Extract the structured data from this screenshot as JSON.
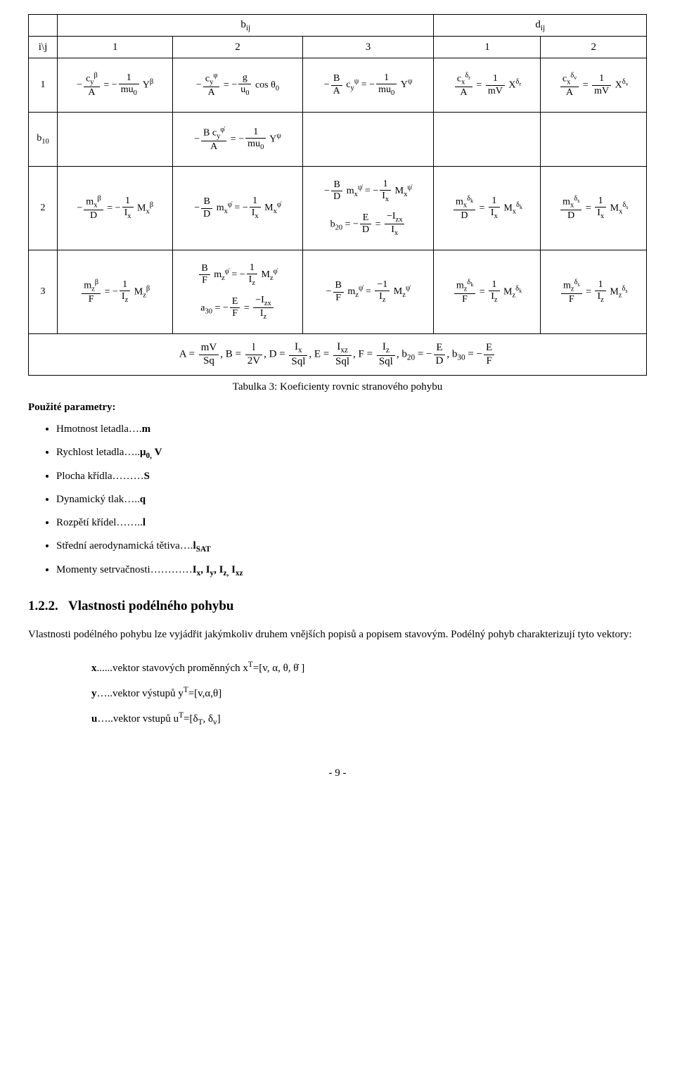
{
  "table": {
    "top_headers": {
      "b": "b<sub>ij</sub>",
      "d": "d<sub>ij</sub>"
    },
    "ij_label": "i\\j",
    "cols": [
      "1",
      "2",
      "3",
      "1",
      "2"
    ],
    "row1_label": "1",
    "row1": {
      "c1": "−<span class='frac'><span class='num'>c<sub>y</sub><sup>β</sup></span><span class='den'>A</span></span> = −<span class='frac'><span class='num'>1</span><span class='den'>mu<sub>0</sub></span></span> Y<sup>β</sup>",
      "c2": "−<span class='frac'><span class='num'>c<sub>y</sub><sup>φ</sup></span><span class='den'>A</span></span> = −<span class='frac'><span class='num'>g</span><span class='den'>u<sub>0</sub></span></span> cos θ<sub>0</sub>",
      "c3": "−<span class='frac'><span class='num'>B</span><span class='den'>A</span></span> c<sub>y</sub><sup>ψ</sup> = −<span class='frac'><span class='num'>1</span><span class='den'>mu<sub>0</sub></span></span> Y<sup>ψ</sup>",
      "c4": "<span class='frac'><span class='num'>c<sub>x</sub><sup>δ<sub>r</sub></sup></span><span class='den'>A</span></span> = <span class='frac'><span class='num'>1</span><span class='den'>mV</span></span> X<sup>δ<sub>r</sub></sup>",
      "c5": "<span class='frac'><span class='num'>c<sub>x</sub><sup>δ<sub>v</sub></sup></span><span class='den'>A</span></span> = <span class='frac'><span class='num'>1</span><span class='den'>mV</span></span> X<sup>δ<sub>v</sub></sup>"
    },
    "row_b10_label": "b<sub>10</sub>",
    "row_b10": {
      "c2": "−<span class='frac'><span class='num'>B c<sub>y</sub><sup>φ̇</sup></span><span class='den'>A</span></span> = −<span class='frac'><span class='num'>1</span><span class='den'>mu<sub>0</sub></span></span> Y<sup>ψ</sup>"
    },
    "row2_label": "2",
    "row2": {
      "c1": "−<span class='frac'><span class='num'>m<sub>x</sub><sup>β</sup></span><span class='den'>D</span></span> = −<span class='frac'><span class='num'>1</span><span class='den'>I<sub>x</sub></span></span> M<sub>x</sub><sup>β</sup>",
      "c2": "−<span class='frac'><span class='num'>B</span><span class='den'>D</span></span> m<sub>x</sub><sup>φ̇</sup> = −<span class='frac'><span class='num'>1</span><span class='den'>I<sub>x</sub></span></span> M<sub>x</sub><sup>φ̇</sup>",
      "c3a": "−<span class='frac'><span class='num'>B</span><span class='den'>D</span></span> m<sub>x</sub><sup>ψ̇</sup> = −<span class='frac'><span class='num'>1</span><span class='den'>I<sub>x</sub></span></span> M<sub>x</sub><sup>ψ̇</sup>",
      "c3b": "b<sub>20</sub> = −<span class='frac'><span class='num'>E</span><span class='den'>D</span></span> = <span class='frac'><span class='num'>−I<sub>zx</sub></span><span class='den'>I<sub>x</sub></span></span>",
      "c4": "<span class='frac'><span class='num'>m<sub>x</sub><sup>δ<sub>k</sub></sup></span><span class='den'>D</span></span> = <span class='frac'><span class='num'>1</span><span class='den'>I<sub>x</sub></span></span> M<sub>x</sub><sup>δ<sub>k</sub></sup>",
      "c5": "<span class='frac'><span class='num'>m<sub>x</sub><sup>δ<sub>s</sub></sup></span><span class='den'>D</span></span> = <span class='frac'><span class='num'>1</span><span class='den'>I<sub>x</sub></span></span> M<sub>x</sub><sup>δ<sub>s</sub></sup>"
    },
    "row3_label": "3",
    "row3": {
      "c1": "<span class='frac'><span class='num'>m<sub>z</sub><sup>β</sup></span><span class='den'>F</span></span> = −<span class='frac'><span class='num'>1</span><span class='den'>I<sub>z</sub></span></span> M<sub>z</sub><sup>β</sup>",
      "c2a": "<span class='frac'><span class='num'>B</span><span class='den'>F</span></span> m<sub>z</sub><sup>φ̇</sup> = −<span class='frac'><span class='num'>1</span><span class='den'>I<sub>z</sub></span></span> M<sub>z</sub><sup>φ̇</sup>",
      "c2b": "a<sub>30</sub> = −<span class='frac'><span class='num'>E</span><span class='den'>F</span></span> = <span class='frac'><span class='num'>−I<sub>zx</sub></span><span class='den'>I<sub>z</sub></span></span>",
      "c3": "−<span class='frac'><span class='num'>B</span><span class='den'>F</span></span> m<sub>z</sub><sup>ψ̇</sup> = <span class='frac'><span class='num'>−1</span><span class='den'>I<sub>z</sub></span></span> M<sub>z</sub><sup>ψ̇</sup>",
      "c4": "<span class='frac'><span class='num'>m<sub>z</sub><sup>δ<sub>k</sub></sup></span><span class='den'>F</span></span> = <span class='frac'><span class='num'>1</span><span class='den'>I<sub>z</sub></span></span> M<sub>z</sub><sup>δ<sub>k</sub></sup>",
      "c5": "<span class='frac'><span class='num'>m<sub>z</sub><sup>δ<sub>s</sub></sup></span><span class='den'>F</span></span> = <span class='frac'><span class='num'>1</span><span class='den'>I<sub>z</sub></span></span> M<sub>z</sub><sup>δ<sub>s</sub></sup>"
    },
    "footer": "A = <span class='frac'><span class='num'>mV</span><span class='den'>Sq</span></span>, B = <span class='frac'><span class='num'>l</span><span class='den'>2V</span></span>, D = <span class='frac'><span class='num'>I<sub>x</sub></span><span class='den'>Sql</span></span>, E = <span class='frac'><span class='num'>I<sub>xz</sub></span><span class='den'>Sql</span></span>, F = <span class='frac'><span class='num'>I<sub>z</sub></span><span class='den'>Sql</span></span>, b<sub>20</sub> = −<span class='frac'><span class='num'>E</span><span class='den'>D</span></span>, b<sub>30</sub> = −<span class='frac'><span class='num'>E</span><span class='den'>F</span></span>"
  },
  "caption": "Tabulka 3: Koeficienty rovnic stranového pohybu",
  "params_title": "Použité parametry:",
  "params": [
    "Hmotnost letadla….<b>m</b>",
    "Rychlost letadla…..<b>μ<sub>0,</sub> V</b>",
    "Plocha křídla………<b>S</b>",
    "Dynamický tlak…..<b>q</b>",
    "Rozpětí křídel……..<b>l</b>",
    "Střední aerodynamická tětiva….<b>l<sub>SAT</sub></b>",
    "Momenty setrvačnosti…………<b>I<sub>x</sub>, I<sub>y</sub>, I<sub>z,</sub> I<sub>xz</sub></b>"
  ],
  "section_head": "1.2.2.&nbsp;&nbsp;&nbsp;Vlastnosti podélného pohybu",
  "body": "Vlastnosti podélného pohybu lze vyjádřit jakýmkoliv druhem vnějších popisů a popisem stavovým. Podélný pohyb charakterizují tyto vektory:",
  "defs": [
    "<b>x</b>......vektor stavových proměnných x<sup>T</sup>=[v, α, θ, θ̇ ]",
    "<b>y</b>…..vektor výstupů y<sup>T</sup>=[v,α,θ]",
    "<b>u</b>…..vektor vstupů  u<sup>T</sup>=[δ<sub>T</sub>, δ<sub>v</sub>]"
  ],
  "pagenum": "- 9 -"
}
